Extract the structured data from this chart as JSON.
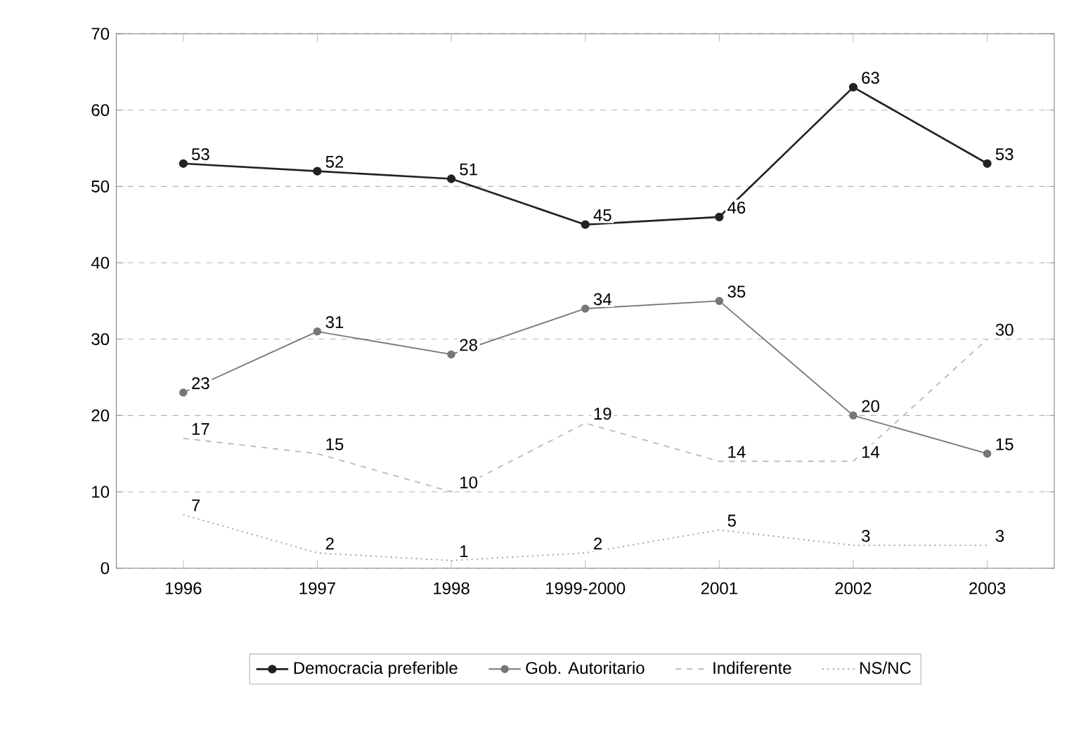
{
  "chart_data": {
    "type": "line",
    "categories": [
      "1996",
      "1997",
      "1998",
      "1999-2000",
      "2001",
      "2002",
      "2003"
    ],
    "series": [
      {
        "name": "Democracia preferible",
        "color": "#222222",
        "values": [
          53,
          52,
          51,
          45,
          46,
          63,
          53
        ],
        "marker": "circle",
        "line_style": "solid"
      },
      {
        "name": "Gob. Autoritario",
        "color": "#777777",
        "values": [
          23,
          31,
          28,
          34,
          35,
          20,
          15
        ],
        "marker": "circle",
        "line_style": "solid"
      },
      {
        "name": "Indiferente",
        "color": "#bbbbbb",
        "values": [
          17,
          15,
          10,
          19,
          14,
          14,
          30
        ],
        "marker": "none",
        "line_style": "dashed"
      },
      {
        "name": "NS/NC",
        "color": "#999999",
        "values": [
          7,
          2,
          1,
          2,
          5,
          3,
          3
        ],
        "marker": "none",
        "line_style": "dotted"
      }
    ],
    "ylim": [
      0,
      70
    ],
    "yticks": [
      0,
      10,
      20,
      30,
      40,
      50,
      60,
      70
    ],
    "grid": "y",
    "legend": "bottom",
    "data_labels": true
  }
}
